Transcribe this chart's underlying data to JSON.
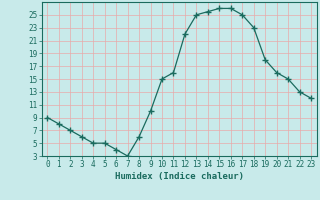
{
  "x": [
    0,
    1,
    2,
    3,
    4,
    5,
    6,
    7,
    8,
    9,
    10,
    11,
    12,
    13,
    14,
    15,
    16,
    17,
    18,
    19,
    20,
    21,
    22,
    23
  ],
  "y": [
    9,
    8,
    7,
    6,
    5,
    5,
    4,
    3,
    6,
    10,
    15,
    16,
    22,
    25,
    25.5,
    26,
    26,
    25,
    23,
    18,
    16,
    15,
    13,
    12
  ],
  "line_color": "#1a6b5e",
  "marker": "+",
  "marker_size": 4,
  "bg_color": "#c8eaea",
  "grid_color": "#e8aaaa",
  "xlabel": "Humidex (Indice chaleur)",
  "ylim": [
    3,
    27
  ],
  "yticks": [
    3,
    5,
    7,
    9,
    11,
    13,
    15,
    17,
    19,
    21,
    23,
    25
  ],
  "xlim": [
    -0.5,
    23.5
  ],
  "xticks": [
    0,
    1,
    2,
    3,
    4,
    5,
    6,
    7,
    8,
    9,
    10,
    11,
    12,
    13,
    14,
    15,
    16,
    17,
    18,
    19,
    20,
    21,
    22,
    23
  ],
  "tick_fontsize": 5.5,
  "label_fontsize": 6.5
}
